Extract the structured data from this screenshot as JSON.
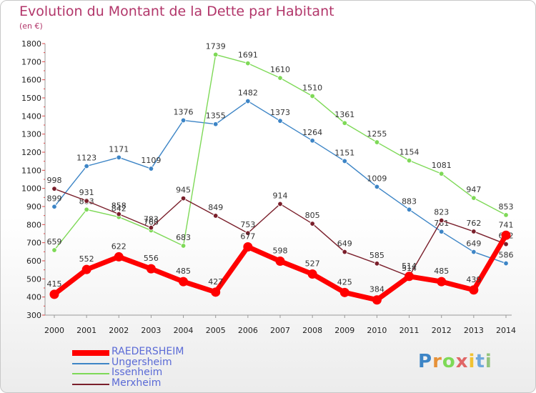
{
  "title": "Evolution du Montant de la Dette par Habitant",
  "subtitle": "(en €)",
  "logo_text": "Proxiti",
  "chart_data": {
    "type": "line",
    "x": [
      "2000",
      "2001",
      "2002",
      "2003",
      "2004",
      "2005",
      "2006",
      "2007",
      "2008",
      "2009",
      "2010",
      "2011",
      "2012",
      "2013",
      "2014"
    ],
    "ylim": [
      300,
      1800
    ],
    "yticks": [
      "300",
      "400",
      "500",
      "600",
      "700",
      "800",
      "900",
      "1000",
      "1100",
      "1200",
      "1300",
      "1400",
      "1500",
      "1600",
      "1700",
      "1800"
    ],
    "grid": false,
    "legend_position": "bottom-left",
    "series": [
      {
        "name": "RAEDERSHEIM",
        "color": "#ff0000",
        "values": [
          415,
          552,
          622,
          556,
          485,
          427,
          677,
          598,
          527,
          425,
          384,
          514,
          485,
          439,
          741
        ]
      },
      {
        "name": "Ungersheim",
        "color": "#3d85c6",
        "values": [
          899,
          1123,
          1171,
          1109,
          1376,
          1355,
          1482,
          1373,
          1264,
          1151,
          1009,
          883,
          761,
          649,
          586
        ]
      },
      {
        "name": "Issenheim",
        "color": "#7ed957",
        "values": [
          659,
          883,
          842,
          768,
          683,
          1739,
          1691,
          1610,
          1510,
          1361,
          1255,
          1154,
          1081,
          947,
          853
        ]
      },
      {
        "name": "Merxheim",
        "color": "#7a1f2b",
        "values": [
          998,
          931,
          858,
          783,
          945,
          849,
          753,
          914,
          805,
          649,
          585,
          514,
          823,
          762,
          692
        ]
      }
    ]
  }
}
